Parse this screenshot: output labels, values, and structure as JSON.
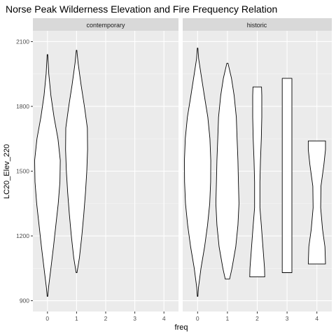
{
  "chart_data": {
    "type": "violin",
    "title": "Norse Peak Wilderness Elevation and Fire Frequency Relation",
    "xlabel": "freq",
    "ylabel": "LC20_Elev_220",
    "categories": [
      0,
      1,
      2,
      3,
      4
    ],
    "x_tick_labels": [
      "0",
      "1",
      "2",
      "3",
      "4"
    ],
    "ylim": [
      850,
      2150
    ],
    "y_ticks": [
      900,
      1200,
      1500,
      1800,
      2100
    ],
    "y_tick_labels": [
      "900",
      "1200",
      "1500",
      "1800",
      "2100"
    ],
    "grid": true,
    "facets": [
      {
        "label": "contemporary",
        "violins": [
          {
            "freq": 0,
            "min": 920,
            "max": 2040,
            "profile": [
              [
                920,
                0.02
              ],
              [
                960,
                0.08
              ],
              [
                1050,
                0.26
              ],
              [
                1150,
                0.46
              ],
              [
                1250,
                0.64
              ],
              [
                1350,
                0.82
              ],
              [
                1450,
                0.95
              ],
              [
                1550,
                0.98
              ],
              [
                1650,
                0.8
              ],
              [
                1750,
                0.5
              ],
              [
                1850,
                0.26
              ],
              [
                1950,
                0.1
              ],
              [
                2040,
                0.02
              ]
            ]
          },
          {
            "freq": 1,
            "min": 1030,
            "max": 2060,
            "profile": [
              [
                1030,
                0.03
              ],
              [
                1100,
                0.22
              ],
              [
                1200,
                0.4
              ],
              [
                1300,
                0.55
              ],
              [
                1400,
                0.68
              ],
              [
                1500,
                0.78
              ],
              [
                1600,
                0.84
              ],
              [
                1700,
                0.82
              ],
              [
                1800,
                0.6
              ],
              [
                1900,
                0.34
              ],
              [
                2000,
                0.12
              ],
              [
                2060,
                0.02
              ]
            ]
          }
        ]
      },
      {
        "label": "historic",
        "violins": [
          {
            "freq": 0,
            "min": 920,
            "max": 2070,
            "profile": [
              [
                920,
                0.02
              ],
              [
                960,
                0.06
              ],
              [
                1050,
                0.25
              ],
              [
                1150,
                0.52
              ],
              [
                1250,
                0.74
              ],
              [
                1350,
                0.9
              ],
              [
                1450,
                0.97
              ],
              [
                1550,
                0.98
              ],
              [
                1650,
                0.92
              ],
              [
                1750,
                0.76
              ],
              [
                1850,
                0.5
              ],
              [
                1950,
                0.25
              ],
              [
                2020,
                0.08
              ],
              [
                2070,
                0.02
              ]
            ]
          },
          {
            "freq": 1,
            "min": 1000,
            "max": 2000,
            "profile": [
              [
                1000,
                0.16
              ],
              [
                1050,
                0.34
              ],
              [
                1150,
                0.62
              ],
              [
                1250,
                0.78
              ],
              [
                1350,
                0.86
              ],
              [
                1450,
                0.82
              ],
              [
                1550,
                0.78
              ],
              [
                1650,
                0.72
              ],
              [
                1750,
                0.66
              ],
              [
                1850,
                0.5
              ],
              [
                1930,
                0.3
              ],
              [
                2000,
                0.04
              ]
            ]
          },
          {
            "freq": 2,
            "min": 1010,
            "max": 1890,
            "profile": [
              [
                1010,
                0.56
              ],
              [
                1050,
                0.54
              ],
              [
                1150,
                0.42
              ],
              [
                1250,
                0.3
              ],
              [
                1330,
                0.2
              ],
              [
                1450,
                0.2
              ],
              [
                1550,
                0.24
              ],
              [
                1650,
                0.3
              ],
              [
                1750,
                0.34
              ],
              [
                1850,
                0.34
              ],
              [
                1890,
                0.32
              ]
            ]
          },
          {
            "freq": 3,
            "min": 1030,
            "max": 1930,
            "profile": [
              [
                1030,
                0.36
              ],
              [
                1930,
                0.36
              ]
            ]
          },
          {
            "freq": 4,
            "min": 1070,
            "max": 1640,
            "profile": [
              [
                1070,
                0.64
              ],
              [
                1150,
                0.6
              ],
              [
                1230,
                0.42
              ],
              [
                1330,
                0.28
              ],
              [
                1430,
                0.3
              ],
              [
                1530,
                0.52
              ],
              [
                1600,
                0.64
              ],
              [
                1640,
                0.64
              ]
            ]
          }
        ]
      }
    ]
  }
}
